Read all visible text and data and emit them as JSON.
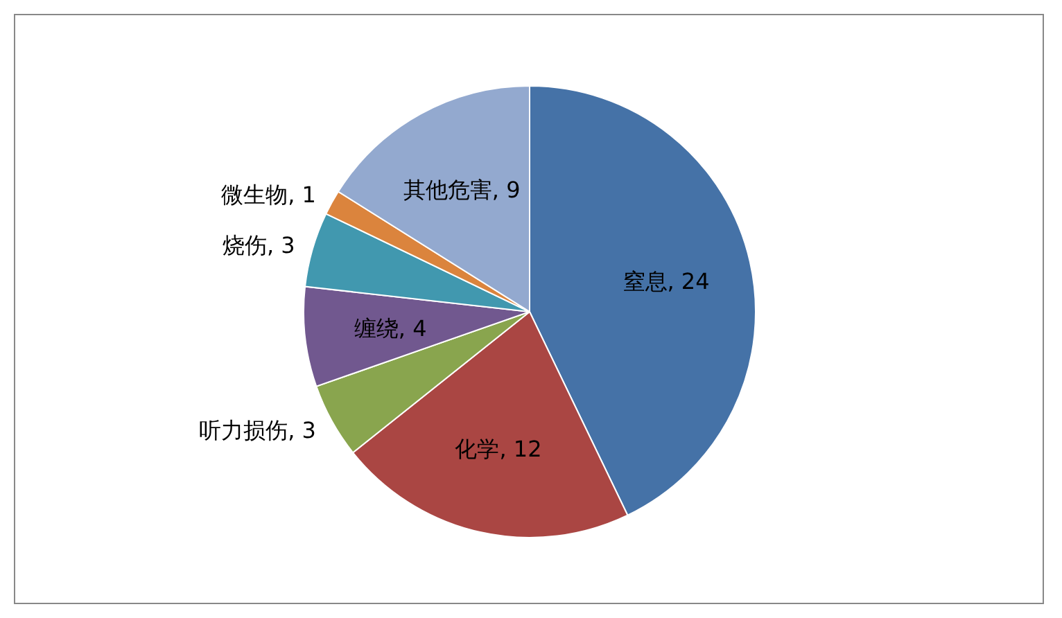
{
  "chart_data": {
    "type": "pie",
    "categories": [
      "窒息",
      "化学",
      "听力损伤",
      "缠绕",
      "烧伤",
      "微生物",
      "其他危害"
    ],
    "values": [
      24,
      12,
      3,
      4,
      3,
      1,
      9
    ],
    "value_labels": [
      ", 24",
      ", 12",
      ", 3",
      ", 4",
      ", 3",
      ", 1",
      ", 9"
    ],
    "colors": [
      "#4572a7",
      "#aa4643",
      "#89a54e",
      "#71588f",
      "#4198af",
      "#db843d",
      "#93a9cf"
    ]
  }
}
